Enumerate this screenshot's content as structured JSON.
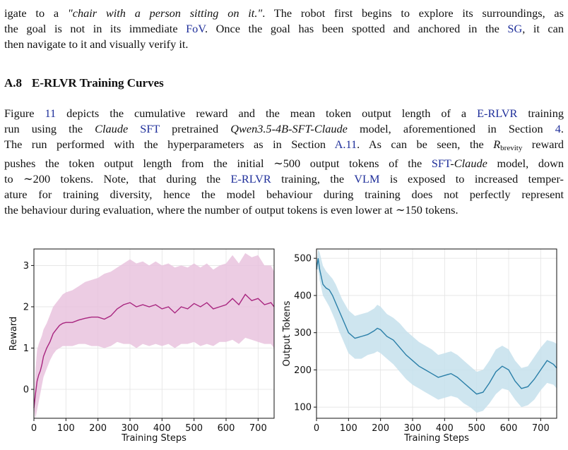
{
  "intro": {
    "line1_a": "igate to a ",
    "line1_quote": "\"chair with a person sitting on it.\"",
    "line1_b": ". The robot first begins to explore its surroundings, as",
    "line2_a": "the goal is not in its immediate ",
    "line2_fov": "FoV",
    "line2_b": ". Once the goal has been spotted and anchored in the ",
    "line2_sg": "SG",
    "line2_c": ", it can",
    "line3": "then navigate to it and visually verify it."
  },
  "section": {
    "number": "A.8",
    "title": "E-RLVR Training Curves"
  },
  "body": {
    "l1_a": "Figure ",
    "l1_ref": "11",
    "l1_b": " depicts the cumulative reward and the mean token output length of a ",
    "l1_erlvr": "E-RLVR",
    "l1_c": " training",
    "l2_a": "run using the ",
    "l2_claude": "Claude",
    "l2_sft": "SFT",
    "l2_b": " pretrained ",
    "l2_model": "Qwen3.5-4B-SFT-Claude",
    "l2_c": " model, aforementioned in Section ",
    "l2_sec": "4",
    "l2_d": ".",
    "l3_a": "The run performed with the hyperparameters as in Section ",
    "l3_sec": "A.11",
    "l3_b": ". As can be seen, the ",
    "l3_r": "R",
    "l3_sub": "brevity",
    "l3_c": " reward",
    "l4_a": "pushes the token output length from the initial ∼500 output tokens of the ",
    "l4_sft": "SFT",
    "l4_dash": "-",
    "l4_claude": "Claude",
    "l4_b": " model, down",
    "l5_a": "to ∼200 tokens. Note, that during the ",
    "l5_erlvr": "E-RLVR",
    "l5_b": " training, the ",
    "l5_vlm": "VLM",
    "l5_c": " is exposed to increased temper-",
    "l6": "ature for training diversity, hence the model behaviour during training does not perfectly represent",
    "l7": "the behaviour during evaluation, where the number of output tokens is even lower at ∼150 tokens."
  },
  "colors": {
    "reward_line": "#a8257f",
    "reward_band": "#e9c3de",
    "tokens_line": "#2a7fa8",
    "tokens_band": "#c6e0ec",
    "link": "#1f2f9a"
  },
  "chart_data": [
    {
      "type": "line",
      "xlabel": "Training Steps",
      "ylabel": "Reward",
      "xlim": [
        0,
        750
      ],
      "ylim": [
        -0.7,
        3.4
      ],
      "xticks": [
        0,
        100,
        200,
        300,
        400,
        500,
        600,
        700
      ],
      "yticks": [
        0,
        1,
        2,
        3
      ],
      "grid": true,
      "x": [
        0,
        5,
        10,
        15,
        20,
        25,
        30,
        40,
        50,
        60,
        70,
        80,
        90,
        100,
        120,
        140,
        160,
        180,
        200,
        220,
        240,
        260,
        280,
        300,
        320,
        340,
        360,
        380,
        400,
        420,
        440,
        460,
        480,
        500,
        520,
        540,
        560,
        580,
        600,
        620,
        640,
        660,
        680,
        700,
        720,
        740,
        750
      ],
      "series": [
        {
          "values": [
            -0.45,
            -0.1,
            0.2,
            0.35,
            0.45,
            0.6,
            0.8,
            1.0,
            1.15,
            1.35,
            1.45,
            1.55,
            1.6,
            1.62,
            1.62,
            1.68,
            1.72,
            1.75,
            1.75,
            1.7,
            1.78,
            1.95,
            2.05,
            2.1,
            2.0,
            2.05,
            2.0,
            2.05,
            1.95,
            2.0,
            1.85,
            2.0,
            1.95,
            2.08,
            2.0,
            2.1,
            1.95,
            2.0,
            2.05,
            2.2,
            2.05,
            2.3,
            2.15,
            2.2,
            2.05,
            2.1,
            2.0
          ]
        }
      ],
      "band_low": [
        -0.45,
        -0.7,
        -0.5,
        -0.3,
        -0.1,
        0.1,
        0.3,
        0.5,
        0.7,
        0.85,
        0.95,
        1.0,
        1.05,
        1.05,
        1.05,
        1.1,
        1.1,
        1.05,
        1.05,
        1.0,
        1.05,
        1.15,
        1.1,
        1.1,
        1.0,
        1.1,
        1.05,
        1.1,
        1.05,
        1.1,
        1.0,
        1.1,
        1.1,
        1.15,
        1.05,
        1.1,
        1.05,
        1.15,
        1.15,
        1.2,
        1.1,
        1.25,
        1.2,
        1.15,
        1.1,
        1.1,
        1.0
      ],
      "band_high": [
        -0.45,
        0.5,
        0.95,
        1.1,
        1.2,
        1.3,
        1.45,
        1.6,
        1.8,
        2.0,
        2.1,
        2.2,
        2.3,
        2.35,
        2.4,
        2.5,
        2.6,
        2.65,
        2.7,
        2.8,
        2.85,
        2.95,
        3.05,
        3.15,
        3.05,
        3.1,
        3.0,
        3.1,
        3.0,
        3.05,
        2.95,
        3.0,
        2.95,
        3.05,
        2.95,
        3.05,
        2.9,
        3.0,
        3.05,
        3.25,
        3.05,
        3.3,
        3.2,
        3.25,
        3.0,
        3.0,
        2.85
      ]
    },
    {
      "type": "line",
      "xlabel": "Training Steps",
      "ylabel": "Output Tokens",
      "xlim": [
        0,
        750
      ],
      "ylim": [
        70,
        525
      ],
      "xticks": [
        0,
        100,
        200,
        300,
        400,
        500,
        600,
        700
      ],
      "yticks": [
        100,
        200,
        300,
        400,
        500
      ],
      "grid": true,
      "x": [
        0,
        5,
        10,
        20,
        30,
        40,
        50,
        60,
        70,
        80,
        90,
        100,
        120,
        140,
        160,
        180,
        190,
        200,
        220,
        240,
        260,
        280,
        300,
        320,
        340,
        360,
        380,
        400,
        420,
        440,
        460,
        480,
        500,
        520,
        540,
        560,
        580,
        600,
        620,
        640,
        660,
        680,
        700,
        720,
        740,
        750
      ],
      "series": [
        {
          "values": [
            470,
            500,
            470,
            430,
            420,
            415,
            400,
            380,
            360,
            340,
            320,
            300,
            285,
            290,
            295,
            305,
            312,
            308,
            290,
            280,
            260,
            240,
            225,
            210,
            200,
            190,
            180,
            185,
            190,
            180,
            165,
            150,
            135,
            140,
            165,
            195,
            210,
            200,
            170,
            150,
            155,
            175,
            200,
            225,
            215,
            205
          ]
        }
      ],
      "band_low": [
        470,
        470,
        440,
        400,
        385,
        370,
        350,
        330,
        305,
        285,
        265,
        245,
        230,
        230,
        240,
        245,
        250,
        245,
        230,
        215,
        195,
        175,
        160,
        150,
        140,
        130,
        120,
        125,
        130,
        125,
        110,
        100,
        85,
        90,
        110,
        135,
        150,
        145,
        120,
        100,
        105,
        120,
        145,
        165,
        160,
        150
      ],
      "band_high": [
        470,
        525,
        515,
        480,
        465,
        455,
        445,
        430,
        410,
        390,
        375,
        360,
        345,
        350,
        355,
        365,
        375,
        370,
        350,
        340,
        325,
        305,
        290,
        275,
        265,
        255,
        240,
        245,
        250,
        240,
        225,
        210,
        195,
        200,
        225,
        255,
        265,
        255,
        225,
        205,
        210,
        235,
        260,
        280,
        275,
        270
      ]
    }
  ]
}
